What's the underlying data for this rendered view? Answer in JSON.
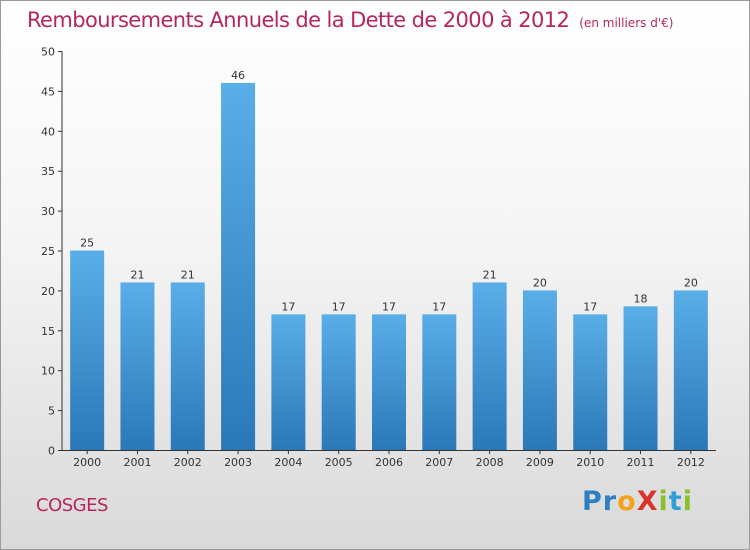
{
  "chart_data": {
    "type": "bar",
    "title": "Remboursements Annuels de la Dette de 2000 à 2012",
    "unit_note": "(en milliers d'€)",
    "categories": [
      "2000",
      "2001",
      "2002",
      "2003",
      "2004",
      "2005",
      "2006",
      "2007",
      "2008",
      "2009",
      "2010",
      "2011",
      "2012"
    ],
    "values": [
      25,
      21,
      21,
      46,
      17,
      17,
      17,
      17,
      21,
      20,
      17,
      18,
      20
    ],
    "ylim": [
      0,
      50
    ],
    "yticks": [
      0,
      5,
      10,
      15,
      20,
      25,
      30,
      35,
      40,
      45,
      50
    ],
    "xlabel": "",
    "ylabel": "",
    "grid": false,
    "colors": {
      "bar_top": "#5aaee8",
      "bar_bottom": "#2f7fc0",
      "title": "#b5265d",
      "axis": "#333333"
    }
  },
  "footer": {
    "town": "COSGES"
  },
  "logo": {
    "letters": [
      {
        "ch": "P",
        "color": "#2f7fc0"
      },
      {
        "ch": "r",
        "color": "#2f7fc0"
      },
      {
        "ch": "o",
        "color": "#f3a21b"
      },
      {
        "ch": "X",
        "color": "#d8342c"
      },
      {
        "ch": "i",
        "color": "#8bbf2c"
      },
      {
        "ch": "t",
        "color": "#2f9fd8"
      },
      {
        "ch": "i",
        "color": "#8bbf2c"
      }
    ]
  }
}
